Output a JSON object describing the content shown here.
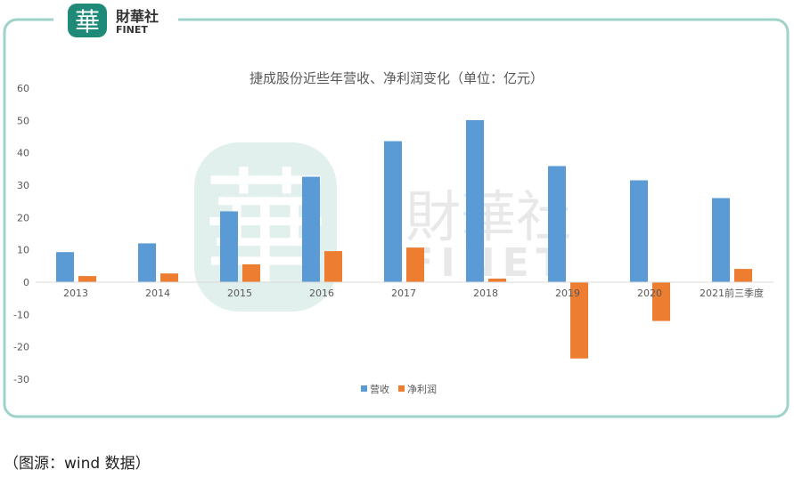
{
  "logo": {
    "mark": "華",
    "name_cn": "財華社",
    "name_en": "FINET"
  },
  "watermark": {
    "mark": "華",
    "name_cn": "財華社",
    "name_en": "FINET"
  },
  "caption": "（图源：wind 数据）",
  "colors": {
    "revenue": "#5b9bd5",
    "profit": "#ed7d31",
    "frame": "#9fd3c9",
    "logo": "#1f8a78"
  },
  "chart_data": {
    "type": "bar",
    "title": "捷成股份近些年营收、净利润变化（单位：亿元）",
    "categories": [
      "2013",
      "2014",
      "2015",
      "2016",
      "2017",
      "2018",
      "2019",
      "2020",
      "2021前三季度"
    ],
    "series": [
      {
        "name": "营收",
        "values": [
          9.3,
          12.0,
          21.9,
          32.6,
          43.6,
          50.1,
          35.9,
          31.5,
          26.0
        ]
      },
      {
        "name": "净利润",
        "values": [
          1.9,
          2.7,
          5.5,
          9.6,
          10.7,
          1.1,
          -23.6,
          -12.0,
          4.1
        ]
      }
    ],
    "ylim": [
      -30,
      60
    ],
    "yticks": [
      "60",
      "50",
      "40",
      "30",
      "20",
      "10",
      "0",
      "-10",
      "-20",
      "-30"
    ],
    "grid": false,
    "legend": "bottom",
    "xlabel": "",
    "ylabel": ""
  }
}
